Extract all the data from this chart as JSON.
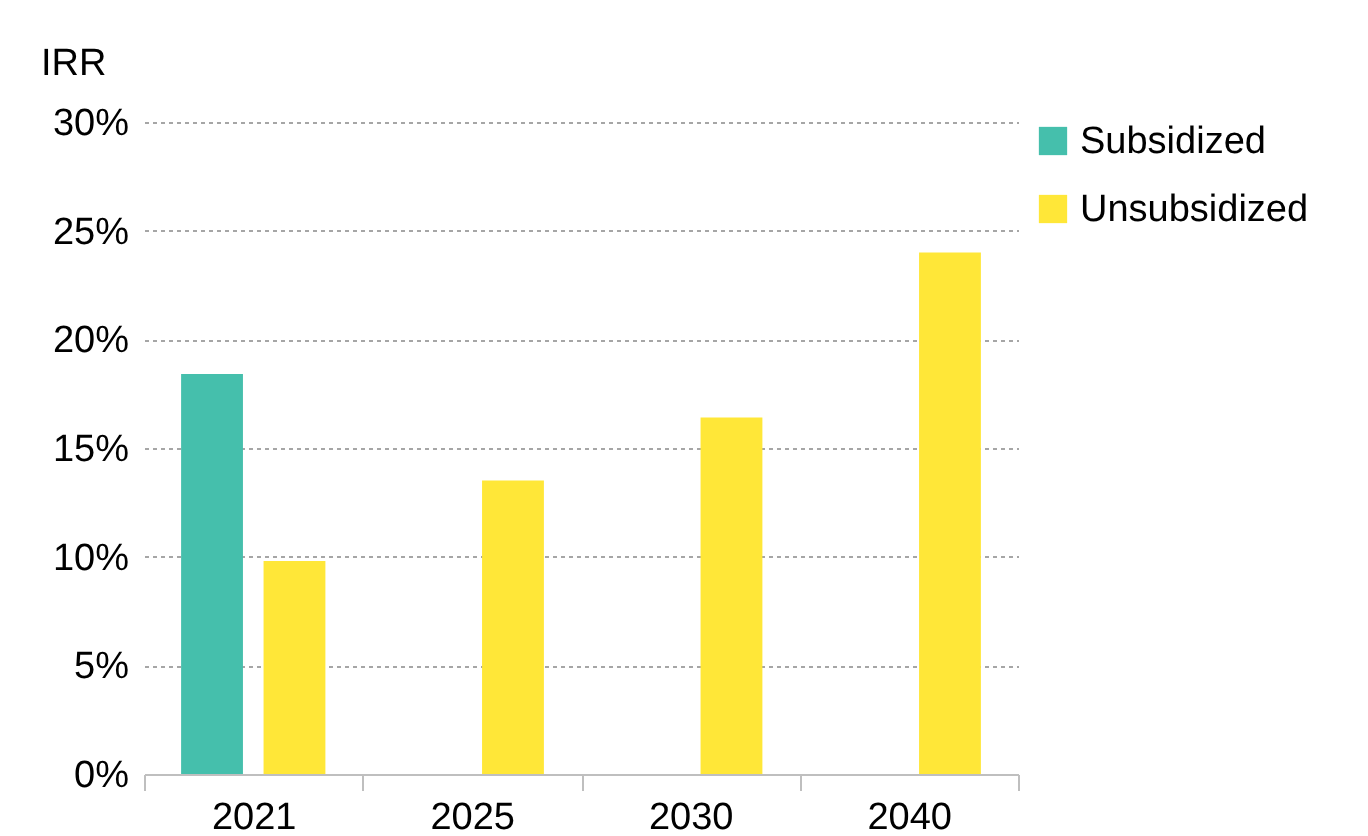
{
  "chart_data": {
    "type": "bar",
    "ylabel": "IRR",
    "categories": [
      "2021",
      "2025",
      "2030",
      "2040"
    ],
    "series": [
      {
        "name": "Subsidized",
        "color": "#45bfac",
        "values": [
          18.4,
          null,
          null,
          null
        ]
      },
      {
        "name": "Unsubsidized",
        "color": "#ffe738",
        "values": [
          9.8,
          13.5,
          16.4,
          24.0
        ]
      }
    ],
    "ylim": [
      0,
      30
    ],
    "yticks": [
      {
        "value": 0,
        "label": "0%"
      },
      {
        "value": 5,
        "label": "5%"
      },
      {
        "value": 10,
        "label": "10%"
      },
      {
        "value": 15,
        "label": "15%"
      },
      {
        "value": 20,
        "label": "20%"
      },
      {
        "value": 25,
        "label": "25%"
      },
      {
        "value": 30,
        "label": "30%"
      }
    ],
    "grid": "y",
    "legend": "right"
  }
}
